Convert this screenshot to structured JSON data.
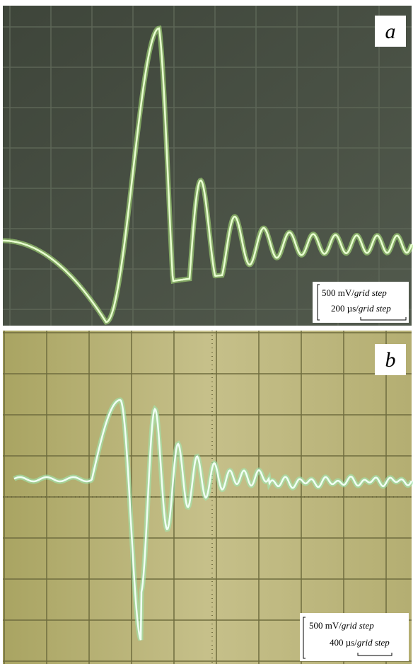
{
  "panels": [
    {
      "label": "a",
      "scale": [
        {
          "amount": "500 mV/",
          "per": "grid step"
        },
        {
          "amount": "200 µs/",
          "per": "grid step"
        }
      ]
    },
    {
      "label": "b",
      "scale": [
        {
          "amount": "500 mV/",
          "per": "grid step"
        },
        {
          "amount": "400 µs/",
          "per": "grid step"
        }
      ]
    }
  ]
}
